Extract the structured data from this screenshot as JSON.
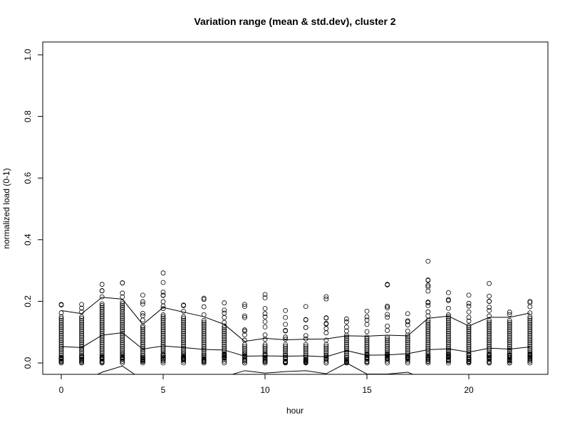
{
  "chart_data": {
    "type": "scatter",
    "title": "Variation range (mean & std.dev), cluster 2",
    "xlabel": "hour",
    "ylabel": "normalized load (0-1)",
    "xlim": [
      0,
      23
    ],
    "ylim": [
      0,
      1
    ],
    "x_ticks": [
      0,
      5,
      10,
      15,
      20
    ],
    "y_ticks": [
      "0.0",
      "0.2",
      "0.4",
      "0.6",
      "0.8",
      "1.0"
    ],
    "grid": false,
    "legend": "none",
    "hours": [
      0,
      1,
      2,
      3,
      4,
      5,
      6,
      7,
      8,
      9,
      10,
      11,
      12,
      13,
      14,
      15,
      16,
      17,
      18,
      19,
      20,
      21,
      22,
      23
    ],
    "series": [
      {
        "values": [
          0.17,
          0.16,
          0.213,
          0.207,
          0.125,
          0.18,
          0.165,
          0.15,
          0.125,
          0.07,
          0.08,
          0.075,
          0.077,
          0.078,
          0.088,
          0.087,
          0.09,
          0.088,
          0.145,
          0.152,
          0.12,
          0.148,
          0.148,
          0.162
        ]
      },
      {
        "values": [
          0.053,
          0.05,
          0.09,
          0.098,
          0.045,
          0.055,
          0.05,
          0.044,
          0.042,
          0.022,
          0.023,
          0.022,
          0.023,
          0.02,
          0.04,
          0.025,
          0.026,
          0.03,
          0.043,
          0.046,
          0.035,
          0.048,
          0.045,
          0.052
        ]
      },
      {
        "values": [
          -0.065,
          -0.062,
          -0.03,
          -0.01,
          -0.055,
          -0.065,
          -0.068,
          -0.062,
          -0.045,
          -0.025,
          -0.033,
          -0.028,
          -0.025,
          -0.035,
          0.0,
          -0.036,
          -0.036,
          -0.03,
          -0.058,
          -0.06,
          -0.05,
          -0.052,
          -0.055,
          -0.056
        ]
      }
    ],
    "points_max": [
      0.19,
      0.19,
      0.255,
      0.26,
      0.22,
      0.292,
      0.188,
      0.21,
      0.195,
      0.19,
      0.222,
      0.17,
      0.183,
      0.215,
      0.143,
      0.168,
      0.255,
      0.16,
      0.33,
      0.228,
      0.22,
      0.258,
      0.165,
      0.2
    ],
    "points_dense_top": [
      0.15,
      0.15,
      0.195,
      0.2,
      0.125,
      0.16,
      0.155,
      0.14,
      0.12,
      0.06,
      0.065,
      0.06,
      0.065,
      0.06,
      0.09,
      0.085,
      0.085,
      0.09,
      0.14,
      0.16,
      0.12,
      0.14,
      0.14,
      0.15
    ],
    "points_min": [
      0.0,
      0.0,
      0.0,
      0.0,
      0.0,
      0.0,
      0.0,
      0.0,
      0.0,
      0.0,
      0.0,
      0.0,
      0.0,
      0.0,
      0.0,
      0.0,
      0.0,
      0.0,
      0.0,
      0.0,
      0.0,
      0.0,
      0.0,
      0.0
    ]
  }
}
